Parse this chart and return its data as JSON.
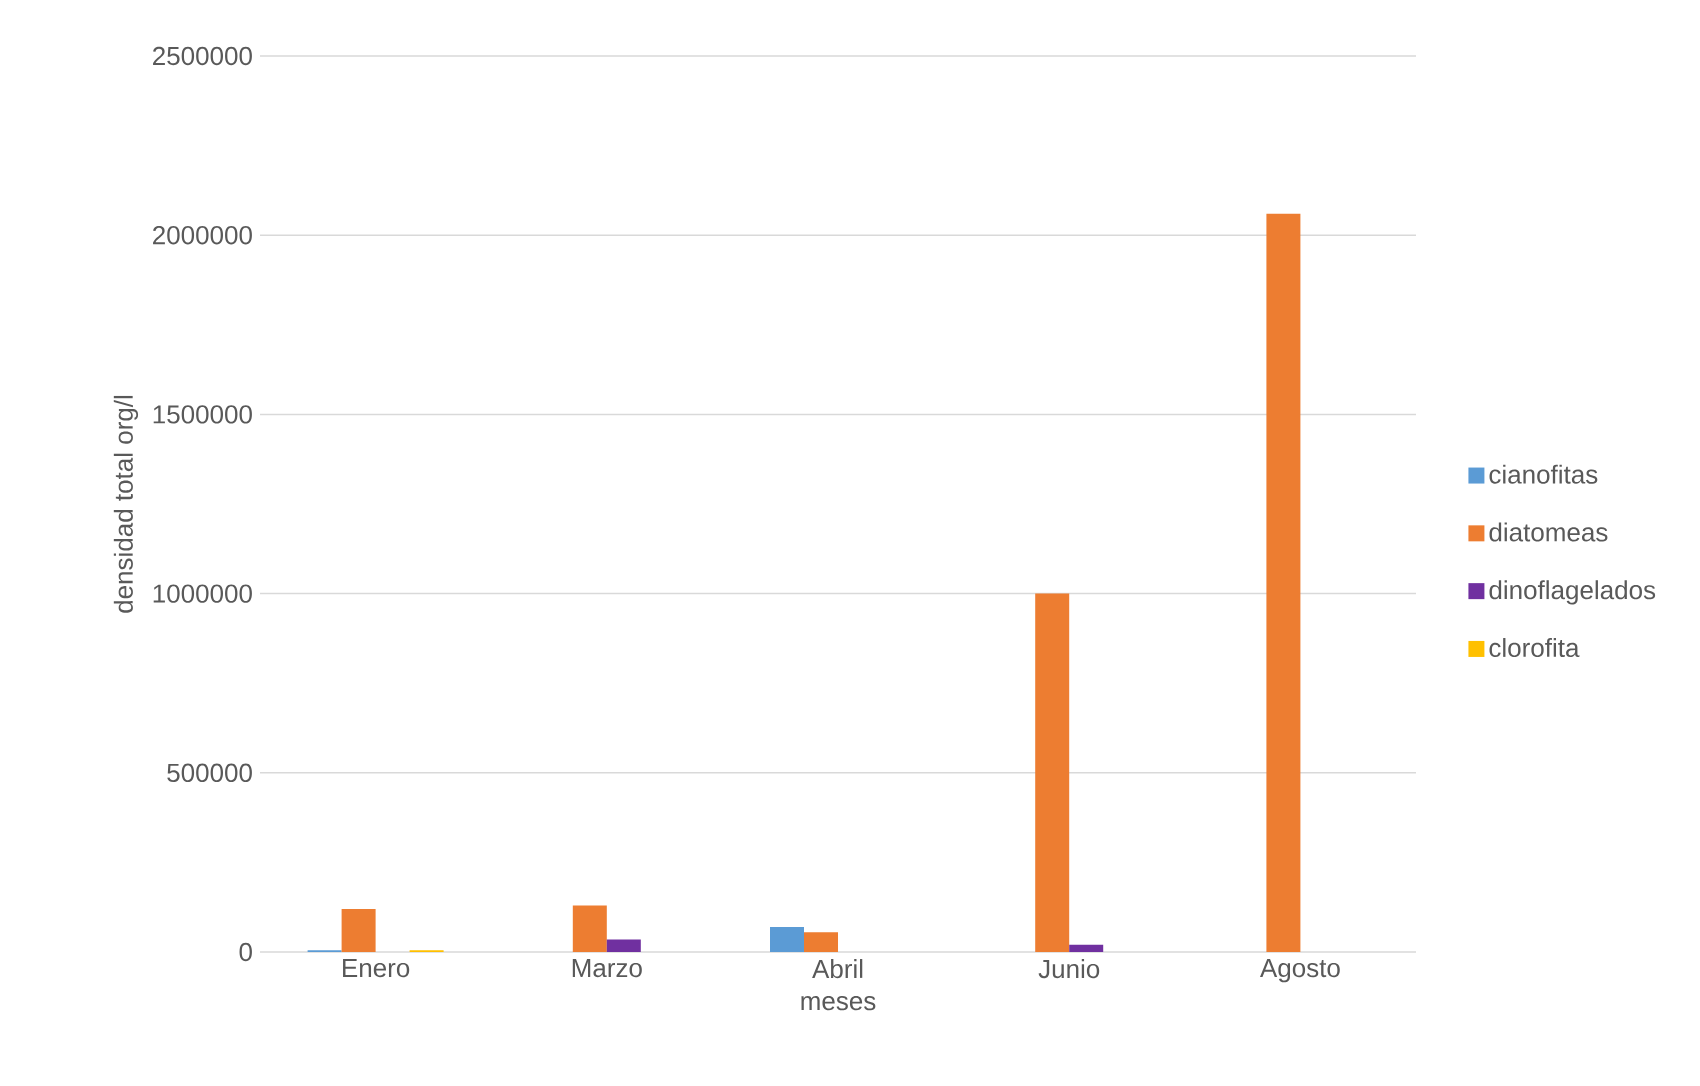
{
  "chart_data": {
    "type": "bar",
    "xlabel": "meses",
    "ylabel": "densidad total org/l",
    "categories": [
      "Enero",
      "Marzo",
      "Abril",
      "Junio",
      "Agosto"
    ],
    "series": [
      {
        "name": "cianofitas",
        "color": "#5b9bd5",
        "values": [
          5000,
          0,
          70000,
          0,
          0
        ]
      },
      {
        "name": "diatomeas",
        "color": "#ed7d31",
        "values": [
          120000,
          130000,
          55000,
          1000000,
          2060000
        ]
      },
      {
        "name": "dinoflagelados",
        "color": "#7030a0",
        "values": [
          0,
          35000,
          0,
          20000,
          0
        ]
      },
      {
        "name": "clorofita",
        "color": "#ffc000",
        "values": [
          5000,
          0,
          0,
          0,
          0
        ]
      }
    ],
    "ylim": [
      0,
      2500000
    ],
    "yticks": [
      0,
      500000,
      1000000,
      1500000,
      2000000,
      2500000
    ],
    "grid": "y",
    "legend": "right"
  }
}
